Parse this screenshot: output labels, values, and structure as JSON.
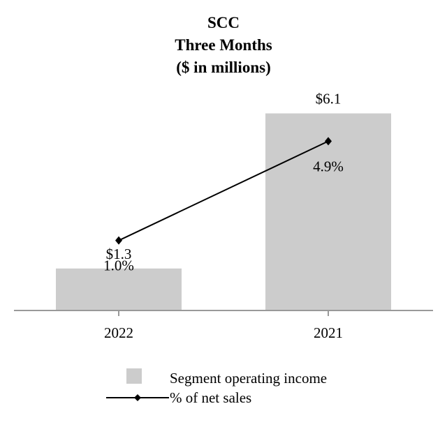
{
  "chart_data": {
    "type": "bar",
    "title_lines": [
      "SCC",
      "Three Months",
      "($ in millions)"
    ],
    "categories": [
      "2022",
      "2021"
    ],
    "series": [
      {
        "name": "Segment operating income",
        "kind": "bar",
        "values": [
          1.3,
          6.1
        ],
        "labels": [
          "$1.3",
          "$6.1"
        ],
        "color": "#cccccc"
      },
      {
        "name": "% of net sales",
        "kind": "line",
        "values": [
          1.0,
          4.9
        ],
        "labels": [
          "1.0%",
          "4.9%"
        ],
        "color": "#000000"
      }
    ],
    "bar_ylim": [
      0,
      6.5
    ],
    "line_ylim": [
      -1.75,
      6.5
    ],
    "xlabel": "",
    "ylabel": "",
    "grid": false,
    "legend_position": "bottom"
  }
}
